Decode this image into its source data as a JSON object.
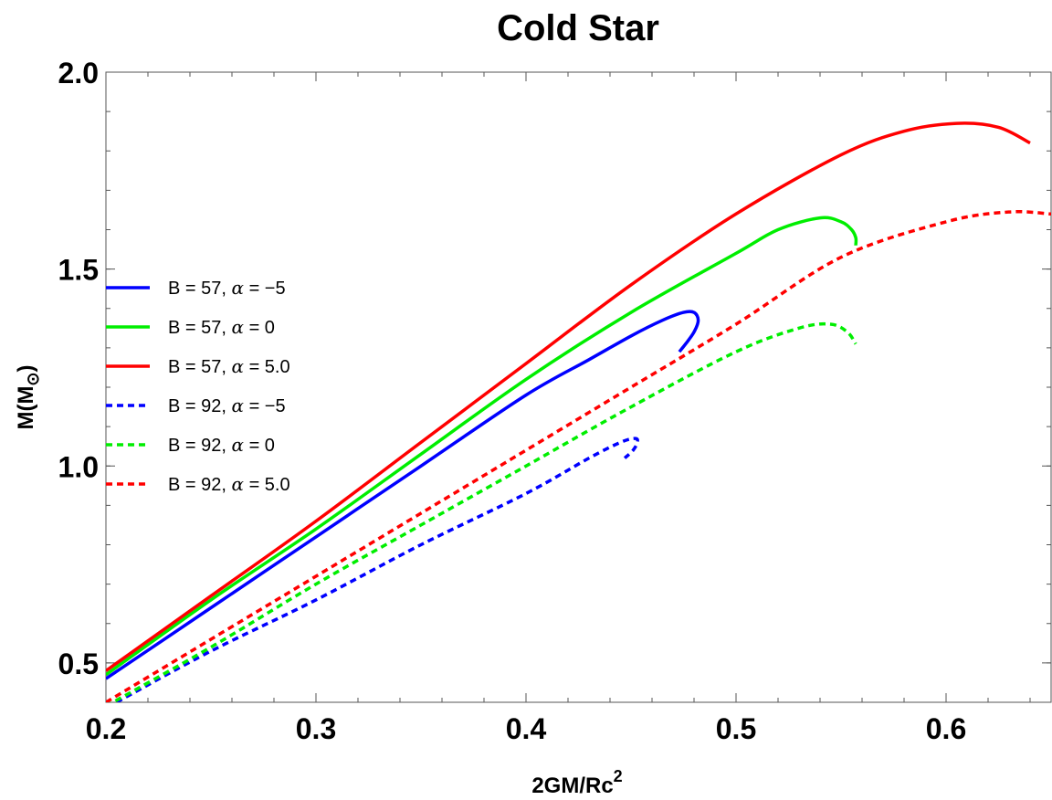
{
  "chart_data": {
    "type": "line",
    "title": "Cold Star",
    "xlabel_main": "2GM/Rc",
    "xlabel_sup": "2",
    "ylabel_main": "M(M",
    "ylabel_sub": "⊙",
    "ylabel_close": ")",
    "xlim": [
      0.2,
      0.65
    ],
    "ylim": [
      0.4,
      2.0
    ],
    "xticks": [
      {
        "value": 0.2,
        "label": "0.2"
      },
      {
        "value": 0.3,
        "label": "0.3"
      },
      {
        "value": 0.4,
        "label": "0.4"
      },
      {
        "value": 0.5,
        "label": "0.5"
      },
      {
        "value": 0.6,
        "label": "0.6"
      }
    ],
    "yticks": [
      {
        "value": 0.5,
        "label": "0.5"
      },
      {
        "value": 1.0,
        "label": "1.0"
      },
      {
        "value": 1.5,
        "label": "1.5"
      },
      {
        "value": 2.0,
        "label": "2.0"
      }
    ],
    "legend_position": "left",
    "series": [
      {
        "name": "B = 57, α = −5",
        "legend_B": "B = 57, ",
        "legend_alpha": "α",
        "legend_val": " = −5",
        "color": "#0000ff",
        "dash": "solid",
        "x": [
          0.2,
          0.25,
          0.3,
          0.35,
          0.4,
          0.43,
          0.45,
          0.465,
          0.475,
          0.48,
          0.482,
          0.48,
          0.476,
          0.473
        ],
        "y": [
          0.46,
          0.64,
          0.82,
          1.0,
          1.18,
          1.27,
          1.33,
          1.37,
          1.39,
          1.39,
          1.37,
          1.34,
          1.31,
          1.29
        ]
      },
      {
        "name": "B = 57, α = 0",
        "legend_B": "B = 57, ",
        "legend_alpha": "α",
        "legend_val": " = 0",
        "color": "#00ee00",
        "dash": "solid",
        "x": [
          0.2,
          0.25,
          0.3,
          0.35,
          0.4,
          0.45,
          0.5,
          0.52,
          0.54,
          0.55,
          0.555,
          0.557,
          0.557
        ],
        "y": [
          0.47,
          0.66,
          0.84,
          1.03,
          1.22,
          1.39,
          1.54,
          1.6,
          1.63,
          1.62,
          1.6,
          1.58,
          1.56
        ]
      },
      {
        "name": "B = 57, α = 5.0",
        "legend_B": "B = 57, ",
        "legend_alpha": "α",
        "legend_val": " = 5.0",
        "color": "#ff0000",
        "dash": "solid",
        "x": [
          0.2,
          0.25,
          0.3,
          0.35,
          0.4,
          0.45,
          0.5,
          0.55,
          0.58,
          0.605,
          0.625,
          0.64
        ],
        "y": [
          0.48,
          0.67,
          0.86,
          1.06,
          1.26,
          1.46,
          1.64,
          1.79,
          1.85,
          1.87,
          1.86,
          1.82
        ]
      },
      {
        "name": "B = 92, α = −5",
        "legend_B": "B = 92, ",
        "legend_alpha": "α",
        "legend_val": " = −5",
        "color": "#0000ff",
        "dash": "dashed",
        "x": [
          0.205,
          0.25,
          0.3,
          0.35,
          0.4,
          0.43,
          0.445,
          0.452,
          0.453,
          0.451,
          0.447
        ],
        "y": [
          0.4,
          0.53,
          0.66,
          0.8,
          0.93,
          1.02,
          1.06,
          1.07,
          1.06,
          1.04,
          1.02
        ]
      },
      {
        "name": "B = 92, α = 0",
        "legend_B": "B = 92, ",
        "legend_alpha": "α",
        "legend_val": " = 0",
        "color": "#00ee00",
        "dash": "dashed",
        "x": [
          0.2,
          0.25,
          0.3,
          0.35,
          0.4,
          0.45,
          0.5,
          0.53,
          0.545,
          0.553,
          0.557
        ],
        "y": [
          0.39,
          0.54,
          0.7,
          0.85,
          1.0,
          1.15,
          1.29,
          1.35,
          1.36,
          1.34,
          1.31
        ]
      },
      {
        "name": "B = 92, α = 5.0",
        "legend_B": "B = 92, ",
        "legend_alpha": "α",
        "legend_val": " = 5.0",
        "color": "#ff0000",
        "dash": "dashed",
        "x": [
          0.2,
          0.25,
          0.3,
          0.35,
          0.4,
          0.45,
          0.5,
          0.55,
          0.6,
          0.63,
          0.65
        ],
        "y": [
          0.4,
          0.56,
          0.72,
          0.88,
          1.04,
          1.2,
          1.36,
          1.53,
          1.62,
          1.645,
          1.64
        ]
      }
    ]
  }
}
